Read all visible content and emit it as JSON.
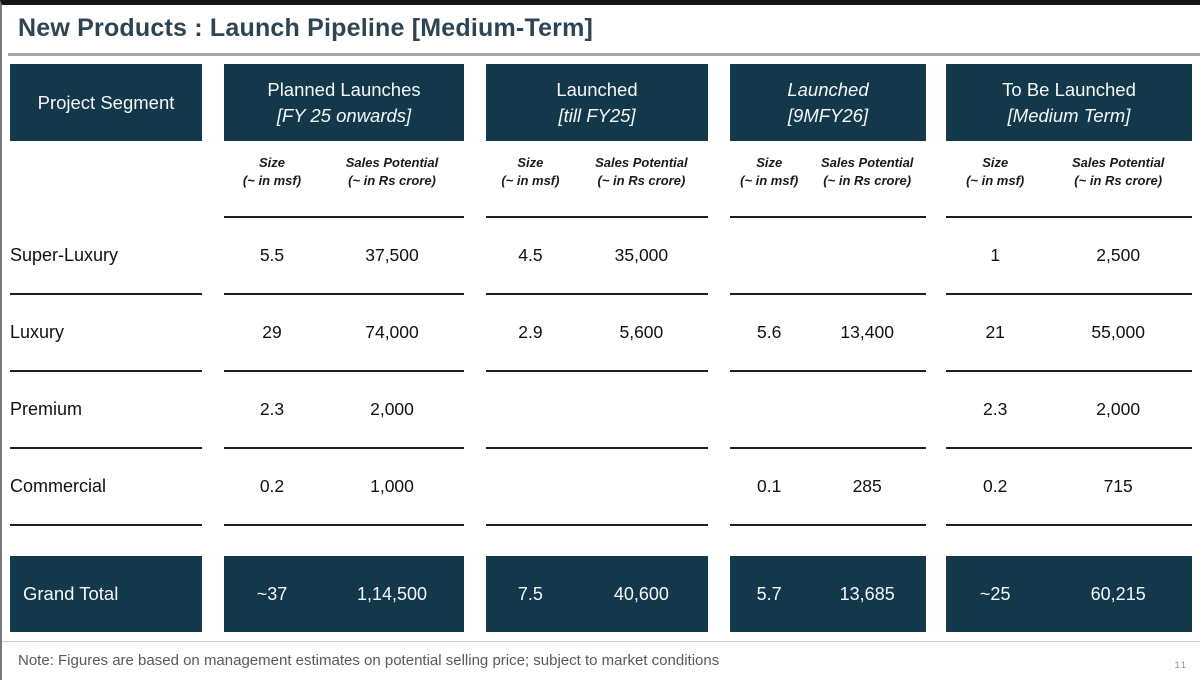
{
  "title": "New Products : Launch Pipeline [Medium-Term]",
  "colors": {
    "header_bg": "#12384A",
    "header_text": "#F5F8F9",
    "title_text": "#2E4453",
    "body_text": "#111111",
    "note_text": "#595959",
    "rule_gray": "#A6A6A6"
  },
  "table": {
    "segment_header": "Project Segment",
    "groups": [
      {
        "line1": "Planned Launches",
        "line2": "[FY 25 onwards]"
      },
      {
        "line1": "Launched",
        "line2": "[till FY25]"
      },
      {
        "line1": "Launched",
        "line2": "[9MFY26]"
      },
      {
        "line1": "To Be Launched",
        "line2": "[Medium Term]"
      }
    ],
    "subheaders": {
      "size_line1": "Size",
      "size_line2": "(~ in msf)",
      "sales_line1": "Sales Potential",
      "sales_line2": "(~ in Rs crore)"
    },
    "rows": [
      {
        "segment": "Super-Luxury",
        "values": [
          "5.5",
          "37,500",
          "4.5",
          "35,000",
          "",
          "",
          "1",
          "2,500"
        ]
      },
      {
        "segment": "Luxury",
        "values": [
          "29",
          "74,000",
          "2.9",
          "5,600",
          "5.6",
          "13,400",
          "21",
          "55,000"
        ]
      },
      {
        "segment": "Premium",
        "values": [
          "2.3",
          "2,000",
          "",
          "",
          "",
          "",
          "2.3",
          "2,000"
        ]
      },
      {
        "segment": "Commercial",
        "values": [
          "0.2",
          "1,000",
          "",
          "",
          "0.1",
          "285",
          "0.2",
          "715"
        ]
      }
    ],
    "grand_total": {
      "segment": "Grand Total",
      "values": [
        "~37",
        "1,14,500",
        "7.5",
        "40,600",
        "5.7",
        "13,685",
        "~25",
        "60,215"
      ]
    }
  },
  "footer": {
    "note": "Note: Figures are based on management estimates on potential selling price; subject to market conditions",
    "page_number": "11"
  }
}
